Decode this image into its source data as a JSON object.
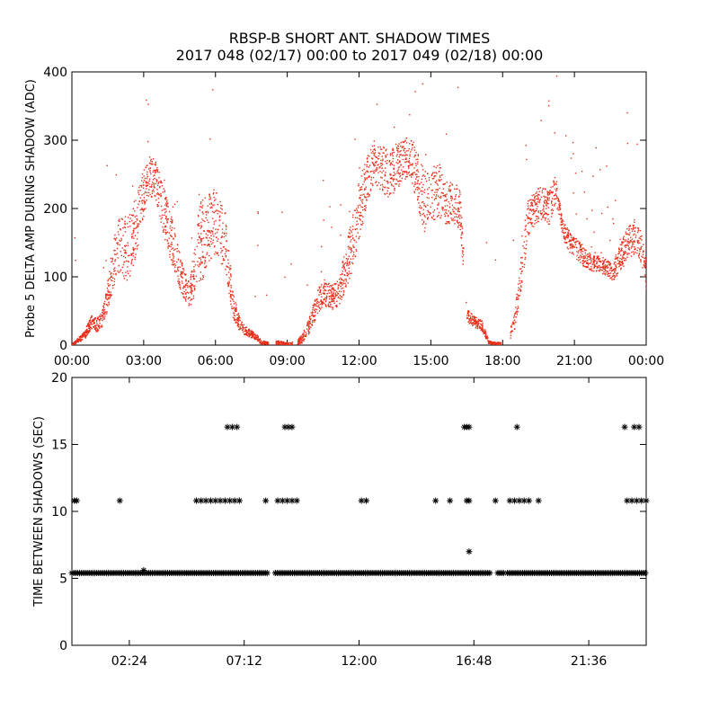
{
  "title": "RBSP-B SHORT ANT. SHADOW TIMES",
  "subtitle": "2017 048 (02/17) 00:00 to 2017 049 (02/18) 00:00",
  "colors": {
    "top_points": "#e8301c",
    "bottom_points": "#000000",
    "axes": "#000000"
  },
  "chart_data": [
    {
      "type": "scatter",
      "ylabel": "Probe 5 DELTA AMP DURING SHADOW (ADC)",
      "xlabel": "",
      "xlim": [
        0,
        24
      ],
      "ylim": [
        0,
        400
      ],
      "xticks": [
        0,
        3,
        6,
        9,
        12,
        15,
        18,
        21,
        24
      ],
      "xtick_labels": [
        "00:00",
        "03:00",
        "06:00",
        "09:00",
        "12:00",
        "15:00",
        "18:00",
        "21:00",
        "00:00"
      ],
      "yticks": [
        0,
        100,
        200,
        300,
        400
      ],
      "ytick_labels": [
        "0",
        "100",
        "200",
        "300",
        "400"
      ],
      "marker": "dot",
      "color": "#e8301c",
      "series": [
        {
          "band_x": [
            0.0,
            0.5,
            0.8,
            1.0,
            1.2,
            1.4,
            1.6,
            1.8,
            2.0,
            2.3,
            2.6,
            2.9,
            3.2,
            3.5,
            3.8,
            4.1,
            4.4,
            4.7,
            4.9,
            5.1,
            5.3,
            5.5,
            5.8,
            6.1,
            6.4,
            6.7,
            7.0,
            7.3,
            7.6,
            7.9,
            8.2,
            8.6,
            9.0,
            9.3,
            9.6,
            9.9,
            10.2,
            10.5,
            10.8,
            11.1,
            11.4,
            11.7,
            12.0,
            12.3,
            12.6,
            12.9,
            13.2,
            13.5,
            13.8,
            14.1,
            14.4,
            14.7,
            15.0,
            15.3,
            15.6,
            15.9,
            16.2,
            16.5,
            16.8,
            17.1,
            17.4,
            17.7,
            18.0,
            18.2,
            18.5,
            18.8,
            19.0,
            19.3,
            19.6,
            19.9,
            20.2,
            20.5,
            20.8,
            21.1,
            21.4,
            21.7,
            22.0,
            22.3,
            22.6,
            22.9,
            23.2,
            23.5,
            23.8,
            24.0
          ],
          "band_y": [
            2,
            15,
            35,
            30,
            35,
            60,
            100,
            130,
            150,
            140,
            170,
            210,
            250,
            240,
            200,
            160,
            120,
            85,
            75,
            110,
            150,
            160,
            180,
            170,
            150,
            60,
            30,
            20,
            15,
            5,
            3,
            5,
            2,
            3,
            10,
            30,
            60,
            80,
            70,
            75,
            110,
            150,
            200,
            240,
            270,
            260,
            250,
            260,
            270,
            280,
            250,
            210,
            220,
            230,
            210,
            210,
            200,
            45,
            35,
            30,
            5,
            3,
            3,
            5,
            40,
            120,
            180,
            200,
            210,
            200,
            230,
            170,
            150,
            140,
            130,
            120,
            120,
            115,
            110,
            130,
            150,
            160,
            140,
            100
          ],
          "spread": [
            1,
            6,
            10,
            10,
            12,
            18,
            30,
            40,
            45,
            50,
            45,
            40,
            30,
            30,
            35,
            35,
            30,
            20,
            18,
            40,
            60,
            60,
            55,
            50,
            45,
            20,
            10,
            6,
            5,
            3,
            2,
            3,
            2,
            3,
            6,
            12,
            18,
            20,
            18,
            20,
            30,
            40,
            45,
            35,
            30,
            35,
            35,
            35,
            30,
            30,
            40,
            45,
            40,
            40,
            35,
            30,
            30,
            10,
            8,
            8,
            2,
            2,
            2,
            3,
            15,
            30,
            30,
            25,
            25,
            25,
            20,
            15,
            15,
            15,
            15,
            12,
            12,
            12,
            15,
            20,
            25,
            25,
            25,
            20
          ],
          "gap_ranges": [
            [
              8.2,
              8.5
            ],
            [
              9.2,
              9.4
            ],
            [
              16.35,
              16.45
            ],
            [
              17.9,
              18.3
            ]
          ]
        }
      ]
    },
    {
      "type": "scatter",
      "ylabel": "TIME BETWEEN SHADOWS (SEC)",
      "xlabel": "",
      "xlim": [
        0,
        24
      ],
      "ylim": [
        0,
        20
      ],
      "xticks": [
        2.4,
        7.2,
        12.0,
        16.8,
        21.6
      ],
      "xtick_labels": [
        "02:24",
        "07:12",
        "12:00",
        "16:48",
        "21:36"
      ],
      "yticks": [
        0,
        5,
        10,
        15,
        20
      ],
      "ytick_labels": [
        "0",
        "5",
        "10",
        "15",
        "20"
      ],
      "marker": "asterisk",
      "color": "#000000",
      "series": [
        {
          "baseline_y": 5.4,
          "baseline_x_ranges": [
            [
              0.0,
              8.2
            ],
            [
              8.5,
              17.5
            ],
            [
              17.8,
              18.05
            ],
            [
              18.2,
              24.0
            ]
          ],
          "points": [
            [
              0.1,
              10.8
            ],
            [
              0.2,
              10.8
            ],
            [
              2.0,
              10.8
            ],
            [
              3.0,
              5.6
            ],
            [
              5.2,
              10.8
            ],
            [
              5.4,
              10.8
            ],
            [
              5.6,
              10.8
            ],
            [
              5.8,
              10.8
            ],
            [
              6.0,
              10.8
            ],
            [
              6.2,
              10.8
            ],
            [
              6.4,
              10.8
            ],
            [
              6.6,
              10.8
            ],
            [
              6.8,
              10.8
            ],
            [
              7.0,
              10.8
            ],
            [
              6.5,
              16.3
            ],
            [
              6.7,
              16.3
            ],
            [
              6.9,
              16.3
            ],
            [
              8.1,
              10.8
            ],
            [
              8.6,
              10.8
            ],
            [
              8.8,
              10.8
            ],
            [
              9.0,
              10.8
            ],
            [
              9.2,
              10.8
            ],
            [
              9.4,
              10.8
            ],
            [
              8.9,
              16.3
            ],
            [
              9.05,
              16.3
            ],
            [
              9.2,
              16.3
            ],
            [
              12.1,
              10.8
            ],
            [
              12.3,
              10.8
            ],
            [
              15.2,
              10.8
            ],
            [
              15.8,
              10.8
            ],
            [
              16.4,
              16.3
            ],
            [
              16.5,
              16.3
            ],
            [
              16.6,
              16.3
            ],
            [
              16.5,
              10.8
            ],
            [
              16.6,
              10.8
            ],
            [
              16.6,
              7.0
            ],
            [
              17.7,
              10.8
            ],
            [
              18.3,
              10.8
            ],
            [
              18.5,
              10.8
            ],
            [
              18.7,
              10.8
            ],
            [
              18.9,
              10.8
            ],
            [
              19.1,
              10.8
            ],
            [
              18.6,
              16.3
            ],
            [
              19.5,
              10.8
            ],
            [
              23.1,
              16.3
            ],
            [
              23.5,
              16.3
            ],
            [
              23.7,
              16.3
            ],
            [
              23.2,
              10.8
            ],
            [
              23.4,
              10.8
            ],
            [
              23.6,
              10.8
            ],
            [
              23.8,
              10.8
            ],
            [
              24.0,
              10.8
            ]
          ]
        }
      ]
    }
  ]
}
